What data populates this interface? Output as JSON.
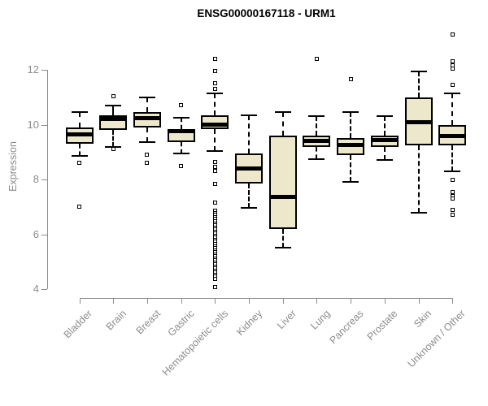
{
  "chart_data": {
    "type": "boxplot",
    "title": "ENSG00000167118 - URM1",
    "ylabel": "Expression",
    "ylim": [
      4,
      13.6
    ],
    "yticks": [
      4,
      6,
      8,
      10,
      12
    ],
    "grid": false,
    "legend": false,
    "colors": {
      "box_fill": "#EDE7CC",
      "box_border": "#000000",
      "median": "#000000",
      "whisker": "#000000",
      "outlier_fill": "#FFFFFF",
      "axis": "#8C8C8C",
      "title": "#000000",
      "background": "#FFFFFF"
    },
    "categories": [
      "Bladder",
      "Brain",
      "Breast",
      "Gastric",
      "Hematopoietic cells",
      "Kidney",
      "Liver",
      "Lung",
      "Pancreas",
      "Prostate",
      "Skin",
      "Unknown / Other"
    ],
    "series": [
      {
        "name": "Bladder",
        "q1": 9.3,
        "median": 9.65,
        "q3": 9.9,
        "whisker_low": 8.85,
        "whisker_high": 10.45,
        "outliers": [
          8.6,
          7.0
        ]
      },
      {
        "name": "Brain",
        "q1": 9.8,
        "median": 10.2,
        "q3": 10.35,
        "whisker_low": 9.2,
        "whisker_high": 10.7,
        "outliers": [
          11.05,
          9.1
        ]
      },
      {
        "name": "Breast",
        "q1": 9.9,
        "median": 10.25,
        "q3": 10.45,
        "whisker_low": 9.35,
        "whisker_high": 11.0,
        "outliers": [
          8.9,
          8.6
        ]
      },
      {
        "name": "Gastric",
        "q1": 9.35,
        "median": 9.75,
        "q3": 9.85,
        "whisker_low": 8.95,
        "whisker_high": 10.25,
        "outliers": [
          10.7,
          8.5
        ]
      },
      {
        "name": "Hematopoietic cells",
        "q1": 9.85,
        "median": 10.0,
        "q3": 10.35,
        "whisker_low": 9.05,
        "whisker_high": 11.15,
        "outliers": [
          12.4,
          11.95,
          11.5,
          11.3,
          8.65,
          8.45,
          8.3,
          7.85,
          7.15,
          6.85,
          6.78,
          6.7,
          6.62,
          6.55,
          6.47,
          6.4,
          6.32,
          6.25,
          6.17,
          6.1,
          6.02,
          5.95,
          5.87,
          5.8,
          5.72,
          5.65,
          5.57,
          5.5,
          5.42,
          5.35,
          5.27,
          5.2,
          5.12,
          5.05,
          4.97,
          4.9,
          4.82,
          4.75,
          4.67,
          4.6,
          4.52,
          4.45,
          4.38,
          4.08
        ]
      },
      {
        "name": "Kidney",
        "q1": 7.85,
        "median": 8.4,
        "q3": 8.95,
        "whisker_low": 6.95,
        "whisker_high": 10.35,
        "outliers": []
      },
      {
        "name": "Liver",
        "q1": 6.2,
        "median": 7.35,
        "q3": 9.6,
        "whisker_low": 5.5,
        "whisker_high": 10.45,
        "outliers": []
      },
      {
        "name": "Lung",
        "q1": 9.2,
        "median": 9.4,
        "q3": 9.6,
        "whisker_low": 8.75,
        "whisker_high": 10.3,
        "outliers": [
          12.4
        ]
      },
      {
        "name": "Pancreas",
        "q1": 8.9,
        "median": 9.25,
        "q3": 9.5,
        "whisker_low": 7.9,
        "whisker_high": 10.45,
        "outliers": [
          11.65
        ]
      },
      {
        "name": "Prostate",
        "q1": 9.2,
        "median": 9.45,
        "q3": 9.6,
        "whisker_low": 8.7,
        "whisker_high": 10.3,
        "outliers": []
      },
      {
        "name": "Skin",
        "q1": 9.25,
        "median": 10.1,
        "q3": 11.0,
        "whisker_low": 6.8,
        "whisker_high": 11.95,
        "outliers": []
      },
      {
        "name": "Unknown / Other",
        "q1": 9.25,
        "median": 9.6,
        "q3": 10.0,
        "whisker_low": 8.3,
        "whisker_high": 11.15,
        "outliers": [
          13.3,
          12.3,
          12.17,
          12.03,
          11.45,
          8.0,
          7.55,
          7.4,
          7.3,
          6.9,
          6.7
        ]
      }
    ]
  }
}
